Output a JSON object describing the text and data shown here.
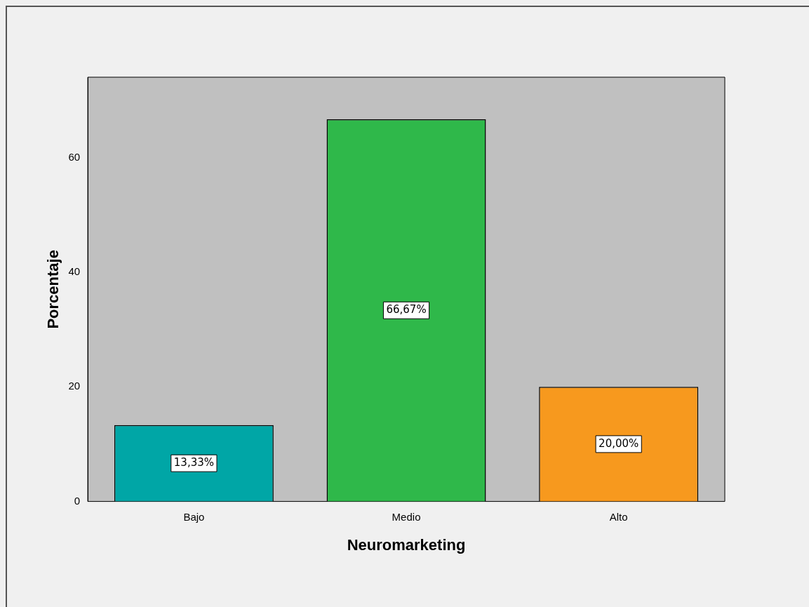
{
  "chart_data": {
    "type": "bar",
    "xlabel": "Neuromarketing",
    "ylabel": "Porcentaje",
    "categories": [
      "Bajo",
      "Medio",
      "Alto"
    ],
    "values": [
      13.33,
      66.67,
      20.0
    ],
    "colors": [
      "#00a6a6",
      "#2fb84a",
      "#f7991e"
    ],
    "value_labels": [
      "13,33%",
      "66,67%",
      "20,00%"
    ],
    "ylim": [
      0,
      74
    ],
    "yticks": [
      0,
      20,
      40,
      60
    ],
    "grid": false,
    "legend": false
  }
}
